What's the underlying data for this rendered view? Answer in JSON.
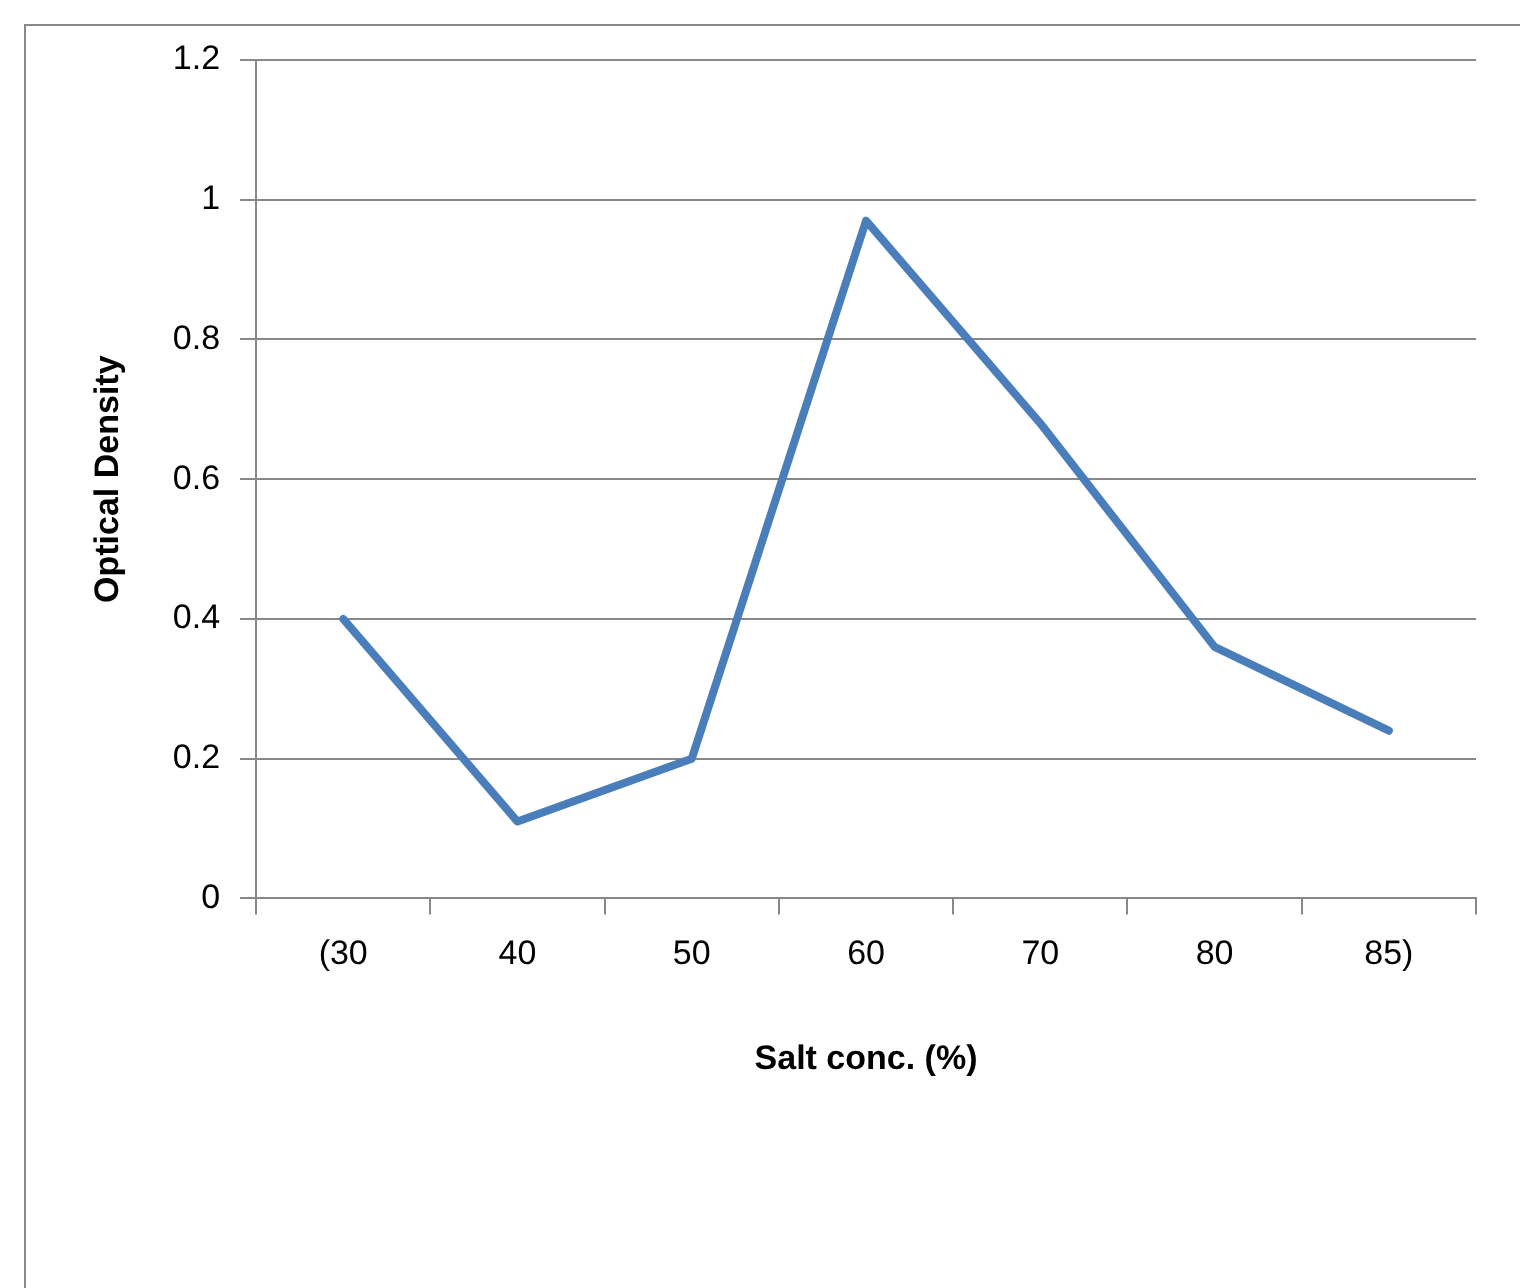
{
  "chart_data": {
    "type": "line",
    "xlabel": "Salt conc. (%)",
    "ylabel": "Optical Density",
    "categories": [
      "(30",
      "40",
      "50",
      "60",
      "70",
      "80",
      "85)"
    ],
    "series": [
      {
        "color": "#4a7ebb",
        "values": [
          0.4,
          0.11,
          0.2,
          0.97,
          0.68,
          0.36,
          0.24
        ]
      }
    ],
    "ylim": [
      0,
      1.2
    ],
    "yticks": [
      0,
      0.2,
      0.4,
      0.6,
      0.8,
      1,
      1.2
    ],
    "grid": "y",
    "legend": false,
    "marker": "none",
    "line_style": "solid"
  }
}
